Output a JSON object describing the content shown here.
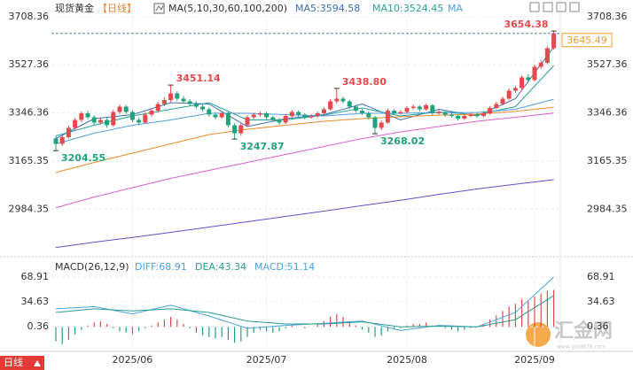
{
  "chart_data": {
    "type": "candlestick",
    "title": "现货黄金",
    "period": "【日线】",
    "ma_legend": "MA(5,10,30,60,100,200)",
    "up_color": "#e5484d",
    "down_color": "#22a27c",
    "categories": [
      null,
      null,
      null,
      null,
      null,
      null,
      null,
      null,
      null,
      null,
      null,
      null,
      "2025/06",
      null,
      null,
      null,
      null,
      null,
      null,
      null,
      null,
      null,
      null,
      null,
      null,
      null,
      null,
      null,
      null,
      null,
      null,
      null,
      null,
      "2025/07",
      null,
      null,
      null,
      null,
      null,
      null,
      null,
      null,
      null,
      null,
      null,
      null,
      null,
      null,
      null,
      null,
      null,
      null,
      null,
      null,
      null,
      "2025/08",
      null,
      null,
      null,
      null,
      null,
      null,
      null,
      null,
      null,
      null,
      null,
      null,
      null,
      null,
      null,
      null,
      null,
      null,
      null,
      "2025/09",
      null,
      null,
      null
    ],
    "candles": [
      [
        3250,
        3260,
        3204.55,
        3230
      ],
      [
        3230,
        3262,
        3222,
        3255
      ],
      [
        3255,
        3298,
        3250,
        3290
      ],
      [
        3290,
        3328,
        3282,
        3320
      ],
      [
        3320,
        3352,
        3312,
        3345
      ],
      [
        3345,
        3355,
        3322,
        3330
      ],
      [
        3330,
        3338,
        3300,
        3310
      ],
      [
        3310,
        3330,
        3302,
        3320
      ],
      [
        3320,
        3328,
        3290,
        3300
      ],
      [
        3300,
        3358,
        3295,
        3350
      ],
      [
        3350,
        3378,
        3342,
        3370
      ],
      [
        3370,
        3376,
        3342,
        3350
      ],
      [
        3350,
        3356,
        3312,
        3320
      ],
      [
        3320,
        3328,
        3300,
        3310
      ],
      [
        3310,
        3348,
        3305,
        3340
      ],
      [
        3340,
        3362,
        3332,
        3355
      ],
      [
        3355,
        3388,
        3348,
        3380
      ],
      [
        3380,
        3405,
        3372,
        3395
      ],
      [
        3395,
        3451.14,
        3388,
        3420
      ],
      [
        3420,
        3428,
        3392,
        3400
      ],
      [
        3400,
        3410,
        3382,
        3390
      ],
      [
        3390,
        3398,
        3372,
        3380
      ],
      [
        3380,
        3390,
        3362,
        3370
      ],
      [
        3370,
        3378,
        3352,
        3360
      ],
      [
        3360,
        3368,
        3332,
        3340
      ],
      [
        3340,
        3350,
        3322,
        3330
      ],
      [
        3330,
        3352,
        3325,
        3345
      ],
      [
        3345,
        3350,
        3292,
        3300
      ],
      [
        3300,
        3308,
        3247.87,
        3270
      ],
      [
        3270,
        3308,
        3262,
        3300
      ],
      [
        3300,
        3338,
        3295,
        3330
      ],
      [
        3330,
        3348,
        3322,
        3340
      ],
      [
        3340,
        3352,
        3332,
        3345
      ],
      [
        3345,
        3350,
        3322,
        3330
      ],
      [
        3330,
        3336,
        3312,
        3320
      ],
      [
        3320,
        3328,
        3302,
        3310
      ],
      [
        3310,
        3342,
        3305,
        3335
      ],
      [
        3335,
        3358,
        3328,
        3350
      ],
      [
        3350,
        3356,
        3332,
        3340
      ],
      [
        3340,
        3346,
        3322,
        3330
      ],
      [
        3330,
        3342,
        3325,
        3335
      ],
      [
        3335,
        3352,
        3328,
        3345
      ],
      [
        3345,
        3368,
        3340,
        3360
      ],
      [
        3360,
        3398,
        3355,
        3390
      ],
      [
        3390,
        3438.8,
        3382,
        3400
      ],
      [
        3400,
        3408,
        3382,
        3390
      ],
      [
        3390,
        3396,
        3362,
        3370
      ],
      [
        3370,
        3378,
        3348,
        3355
      ],
      [
        3355,
        3362,
        3338,
        3345
      ],
      [
        3345,
        3352,
        3322,
        3330
      ],
      [
        3330,
        3336,
        3268.02,
        3290
      ],
      [
        3290,
        3318,
        3282,
        3310
      ],
      [
        3310,
        3362,
        3305,
        3355
      ],
      [
        3355,
        3362,
        3338,
        3345
      ],
      [
        3345,
        3358,
        3340,
        3350
      ],
      [
        3350,
        3372,
        3345,
        3365
      ],
      [
        3365,
        3378,
        3358,
        3370
      ],
      [
        3370,
        3376,
        3352,
        3360
      ],
      [
        3360,
        3382,
        3355,
        3375
      ],
      [
        3375,
        3380,
        3338,
        3345
      ],
      [
        3345,
        3358,
        3340,
        3350
      ],
      [
        3350,
        3356,
        3332,
        3340
      ],
      [
        3340,
        3346,
        3328,
        3335
      ],
      [
        3335,
        3340,
        3318,
        3325
      ],
      [
        3325,
        3342,
        3320,
        3335
      ],
      [
        3335,
        3348,
        3330,
        3340
      ],
      [
        3340,
        3346,
        3328,
        3335
      ],
      [
        3335,
        3352,
        3330,
        3345
      ],
      [
        3345,
        3372,
        3340,
        3365
      ],
      [
        3365,
        3388,
        3360,
        3380
      ],
      [
        3380,
        3408,
        3375,
        3400
      ],
      [
        3400,
        3438,
        3395,
        3430
      ],
      [
        3430,
        3448,
        3422,
        3440
      ],
      [
        3440,
        3488,
        3435,
        3480
      ],
      [
        3480,
        3492,
        3462,
        3470
      ],
      [
        3470,
        3528,
        3465,
        3520
      ],
      [
        3520,
        3545,
        3512,
        3535
      ],
      [
        3535,
        3598,
        3530,
        3590
      ],
      [
        3590,
        3654.38,
        3585,
        3645.49
      ]
    ],
    "series": [
      {
        "name": "MA5:3594.58",
        "color": "#3d6fb6",
        "x": [
          0,
          6,
          12,
          18,
          24,
          30,
          36,
          42,
          48,
          54,
          60,
          66,
          72,
          78
        ],
        "values": [
          3250,
          3325,
          3340,
          3385,
          3380,
          3295,
          3325,
          3340,
          3380,
          3320,
          3360,
          3335,
          3400,
          3594.58
        ]
      },
      {
        "name": "MA10:3524.45",
        "color": "#2aa19b",
        "x": [
          0,
          6,
          12,
          18,
          24,
          30,
          36,
          42,
          48,
          54,
          60,
          66,
          72,
          78
        ],
        "values": [
          3260,
          3300,
          3335,
          3360,
          3385,
          3320,
          3320,
          3338,
          3365,
          3335,
          3350,
          3340,
          3370,
          3524.45
        ]
      },
      {
        "name": "MA",
        "color": "#4f9fe0",
        "x": [
          0,
          6,
          12,
          18,
          24,
          30,
          36,
          42,
          48,
          54,
          60,
          66,
          72,
          78
        ],
        "values": [
          3230,
          3270,
          3300,
          3320,
          3345,
          3345,
          3340,
          3335,
          3345,
          3345,
          3348,
          3348,
          3360,
          3398
        ]
      },
      {
        "color": "#ee8a2a",
        "x": [
          0,
          6,
          12,
          18,
          24,
          30,
          36,
          42,
          48,
          54,
          60,
          66,
          72,
          78
        ],
        "values": [
          3122,
          3160,
          3195,
          3230,
          3265,
          3285,
          3300,
          3315,
          3325,
          3332,
          3338,
          3342,
          3352,
          3368
        ]
      },
      {
        "color": "#dd5fcf",
        "x": [
          0,
          6,
          12,
          18,
          24,
          30,
          36,
          42,
          48,
          54,
          60,
          66,
          72,
          78
        ],
        "values": [
          2990,
          3030,
          3065,
          3100,
          3130,
          3160,
          3190,
          3220,
          3250,
          3275,
          3295,
          3315,
          3330,
          3346
        ]
      },
      {
        "color": "#5b55c9",
        "x": [
          0,
          6,
          12,
          18,
          24,
          30,
          36,
          42,
          48,
          54,
          60,
          66,
          72,
          78
        ],
        "values": [
          2840,
          2860,
          2878,
          2897,
          2917,
          2937,
          2957,
          2977,
          2998,
          3018,
          3040,
          3060,
          3078,
          3095
        ]
      }
    ],
    "annotations": [
      {
        "value": 3204.55,
        "label": "3204.55"
      },
      {
        "value": 3451.14,
        "label": "3451.14"
      },
      {
        "value": 3247.87,
        "label": "3247.87"
      },
      {
        "value": 3438.8,
        "label": "3438.80"
      },
      {
        "value": 3268.02,
        "label": "3268.02"
      },
      {
        "value": 3654.38,
        "label": "3654.38"
      }
    ],
    "last_price": 3645.49,
    "ylim": [
      2822,
      3738
    ],
    "yticks": [
      3708.36,
      3527.36,
      3346.36,
      3165.35,
      2984.35
    ],
    "macd": {
      "legend": "MACD(26,12,9)",
      "diff": {
        "name": "DIFF:68.91",
        "color": "#4aa3df",
        "x": [
          0,
          6,
          12,
          18,
          24,
          30,
          36,
          42,
          48,
          54,
          60,
          66,
          72,
          78
        ],
        "values": [
          25,
          28,
          18,
          30,
          15,
          -2,
          2,
          5,
          8,
          -5,
          2,
          0,
          20,
          68.91
        ]
      },
      "dea": {
        "name": "DEA:43.34",
        "color": "#2a9d8f",
        "x": [
          0,
          6,
          12,
          18,
          24,
          30,
          36,
          42,
          48,
          54,
          60,
          66,
          72,
          78
        ],
        "values": [
          20,
          25,
          22,
          25,
          20,
          8,
          4,
          4,
          7,
          0,
          1,
          0,
          10,
          43.34
        ]
      },
      "hist_name": "MACD:51.14",
      "hist": [
        -20,
        -24,
        -18,
        -10,
        -4,
        2,
        6,
        8,
        4,
        -2,
        -6,
        -8,
        -10,
        -6,
        -2,
        2,
        6,
        10,
        14,
        10,
        4,
        -2,
        -8,
        -12,
        -14,
        -16,
        -14,
        -18,
        -22,
        -20,
        -14,
        -8,
        -4,
        -6,
        -8,
        -6,
        -2,
        2,
        0,
        -2,
        0,
        4,
        8,
        14,
        18,
        14,
        8,
        2,
        -4,
        -8,
        -14,
        -12,
        -6,
        -4,
        -2,
        2,
        4,
        4,
        6,
        2,
        0,
        -2,
        -4,
        -6,
        -4,
        -2,
        0,
        4,
        10,
        16,
        22,
        28,
        32,
        38,
        36,
        42,
        46,
        50,
        51.14
      ],
      "ylim": [
        -31.5,
        87.3
      ],
      "yticks": [
        68.91,
        34.63,
        0.36
      ]
    },
    "tag": "日线",
    "watermark": "汇金网",
    "watermark_url": "www.gold678.com"
  }
}
